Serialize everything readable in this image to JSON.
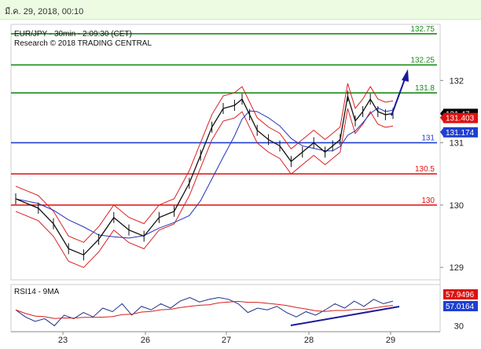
{
  "header": {
    "timestamp": "มี.ค. 29, 2018, 00:10"
  },
  "chart_data": {
    "type": "line",
    "title": "EUR/JPY - 30min - 2:09:30 (CET)",
    "subtitle": "Research © 2018 TRADING CENTRAL",
    "x_ticks": [
      "23",
      "26",
      "27",
      "28",
      "29"
    ],
    "y_ticks": [
      129,
      130,
      131,
      132
    ],
    "ylim": [
      128.8,
      132.9
    ],
    "levels": [
      {
        "label": "132.75",
        "value": 132.75,
        "color": "#1a8a1a"
      },
      {
        "label": "132.25",
        "value": 132.25,
        "color": "#1a8a1a"
      },
      {
        "label": "131.8",
        "value": 131.8,
        "color": "#1a8a1a"
      },
      {
        "label": "131",
        "value": 131.0,
        "color": "#1f3fd0"
      },
      {
        "label": "130.5",
        "value": 130.5,
        "color": "#dd1111"
      },
      {
        "label": "130",
        "value": 130.0,
        "color": "#dd1111"
      }
    ],
    "price_tags": [
      {
        "label": "131.47",
        "value": 131.47,
        "bg": "#000000",
        "fg": "#ffffff"
      },
      {
        "label": "131.403",
        "value": 131.403,
        "bg": "#dd1111",
        "fg": "#ffffff"
      },
      {
        "label": "131.174",
        "value": 131.174,
        "bg": "#1f3fd0",
        "fg": "#ffffff"
      }
    ],
    "price_series": {
      "x": [
        0,
        0.06,
        0.1,
        0.14,
        0.18,
        0.22,
        0.26,
        0.3,
        0.34,
        0.38,
        0.42,
        0.46,
        0.49,
        0.52,
        0.55,
        0.58,
        0.6,
        0.62,
        0.64,
        0.67,
        0.7,
        0.73,
        0.76,
        0.79,
        0.82,
        0.84,
        0.86,
        0.88,
        0.9,
        0.92,
        0.94,
        0.96,
        0.98,
        1.0
      ],
      "close": [
        130.1,
        129.95,
        129.7,
        129.3,
        129.2,
        129.45,
        129.8,
        129.6,
        129.5,
        129.8,
        129.9,
        130.35,
        130.8,
        131.25,
        131.55,
        131.6,
        131.7,
        131.45,
        131.2,
        131.05,
        130.95,
        130.7,
        130.85,
        131.0,
        130.85,
        130.95,
        131.05,
        131.75,
        131.35,
        131.5,
        131.7,
        131.5,
        131.45,
        131.47
      ]
    },
    "rsi_panel": {
      "title": "RSI14 - 9MA",
      "y_ticks": [
        30
      ],
      "tags": [
        {
          "label": "57.9496",
          "bg": "#dd1111",
          "fg": "#ffffff"
        },
        {
          "label": "57.0164",
          "bg": "#1f3fd0",
          "fg": "#ffffff"
        }
      ],
      "ylim": [
        25,
        75
      ],
      "rsi": [
        48,
        40,
        35,
        38,
        30,
        42,
        38,
        45,
        40,
        50,
        46,
        55,
        42,
        52,
        48,
        55,
        50,
        58,
        62,
        57,
        60,
        62,
        60,
        55,
        45,
        50,
        48,
        52,
        45,
        40,
        46,
        42,
        48,
        55,
        50,
        58,
        52,
        60,
        55,
        57.9
      ]
    }
  }
}
